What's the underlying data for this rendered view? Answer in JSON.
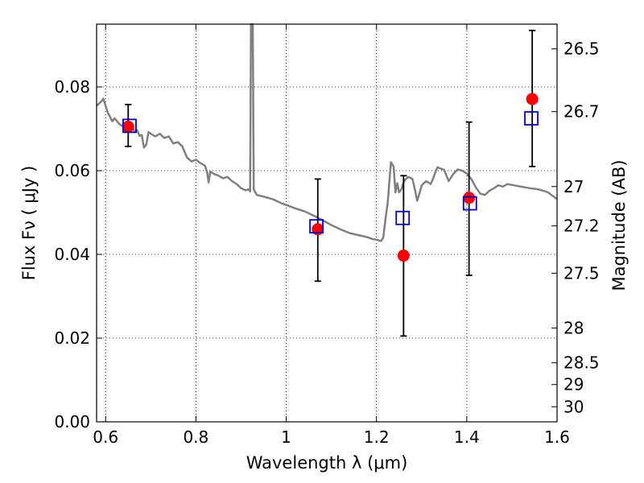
{
  "chart_data": {
    "type": "scatter",
    "title": "",
    "xlabel": "Wavelength  λ (μm)",
    "ylabel": "Flux  Fν  ( μJy )",
    "ylabel_right": "Magnitude (AB)",
    "xlim": [
      0.58,
      1.6
    ],
    "ylim": [
      0.0,
      0.095
    ],
    "grid": true,
    "grid_style": "dotted",
    "x_ticks": [
      0.6,
      0.8,
      1.0,
      1.2,
      1.4,
      1.6
    ],
    "x_tick_labels": [
      "0.6",
      "0.8",
      "1",
      "1.2",
      "1.4",
      "1.6"
    ],
    "y_ticks": [
      0.0,
      0.02,
      0.04,
      0.06,
      0.08
    ],
    "y_tick_labels": [
      "0.00",
      "0.02",
      "0.04",
      "0.06",
      "0.08"
    ],
    "right_ticks": [
      {
        "label": "26.5",
        "flux": 0.0891
      },
      {
        "label": "26.7",
        "flux": 0.0741
      },
      {
        "label": "27",
        "flux": 0.0562
      },
      {
        "label": "27.2",
        "flux": 0.0468
      },
      {
        "label": "27.5",
        "flux": 0.0355
      },
      {
        "label": "28",
        "flux": 0.0224
      },
      {
        "label": "28.5",
        "flux": 0.0141
      },
      {
        "label": "29",
        "flux": 0.0089
      },
      {
        "label": "30",
        "flux": 0.0036
      }
    ],
    "colors": {
      "model": "#808080",
      "observed": "#ff0000",
      "synthetic": "#0000cc",
      "errorbar": "#000000"
    },
    "series": [
      {
        "kind": "line",
        "points": [
          [
            0.58,
            0.0755
          ],
          [
            0.59,
            0.0765
          ],
          [
            0.595,
            0.0772
          ],
          [
            0.6,
            0.0755
          ],
          [
            0.605,
            0.0738
          ],
          [
            0.61,
            0.0728
          ],
          [
            0.615,
            0.0718
          ],
          [
            0.62,
            0.0725
          ],
          [
            0.63,
            0.0712
          ],
          [
            0.64,
            0.0705
          ],
          [
            0.65,
            0.0712
          ],
          [
            0.66,
            0.0702
          ],
          [
            0.665,
            0.0692
          ],
          [
            0.67,
            0.0697
          ],
          [
            0.675,
            0.0683
          ],
          [
            0.68,
            0.0685
          ],
          [
            0.685,
            0.0655
          ],
          [
            0.69,
            0.0662
          ],
          [
            0.695,
            0.0692
          ],
          [
            0.7,
            0.0688
          ],
          [
            0.71,
            0.0682
          ],
          [
            0.72,
            0.0688
          ],
          [
            0.73,
            0.0678
          ],
          [
            0.74,
            0.0682
          ],
          [
            0.75,
            0.0665
          ],
          [
            0.76,
            0.0668
          ],
          [
            0.77,
            0.0658
          ],
          [
            0.78,
            0.0632
          ],
          [
            0.79,
            0.0622
          ],
          [
            0.8,
            0.0626
          ],
          [
            0.81,
            0.0618
          ],
          [
            0.82,
            0.0612
          ],
          [
            0.825,
            0.0595
          ],
          [
            0.828,
            0.0572
          ],
          [
            0.832,
            0.0598
          ],
          [
            0.84,
            0.0592
          ],
          [
            0.85,
            0.0588
          ],
          [
            0.86,
            0.0582
          ],
          [
            0.87,
            0.0585
          ],
          [
            0.88,
            0.0575
          ],
          [
            0.89,
            0.0568
          ],
          [
            0.9,
            0.0558
          ],
          [
            0.91,
            0.0553
          ],
          [
            0.918,
            0.0556
          ],
          [
            0.92,
            0.055
          ],
          [
            0.922,
            0.095
          ],
          [
            0.926,
            0.095
          ],
          [
            0.928,
            0.0555
          ],
          [
            0.935,
            0.0542
          ],
          [
            0.95,
            0.0538
          ],
          [
            0.97,
            0.0532
          ],
          [
            0.99,
            0.0522
          ],
          [
            1.0,
            0.0518
          ],
          [
            1.02,
            0.051
          ],
          [
            1.04,
            0.0503
          ],
          [
            1.06,
            0.0493
          ],
          [
            1.08,
            0.0482
          ],
          [
            1.1,
            0.047
          ],
          [
            1.12,
            0.046
          ],
          [
            1.14,
            0.0451
          ],
          [
            1.16,
            0.0446
          ],
          [
            1.18,
            0.0441
          ],
          [
            1.19,
            0.0437
          ],
          [
            1.2,
            0.0435
          ],
          [
            1.21,
            0.0432
          ],
          [
            1.215,
            0.044
          ],
          [
            1.22,
            0.0485
          ],
          [
            1.225,
            0.0525
          ],
          [
            1.232,
            0.062
          ],
          [
            1.238,
            0.061
          ],
          [
            1.242,
            0.0548
          ],
          [
            1.246,
            0.057
          ],
          [
            1.25,
            0.0548
          ],
          [
            1.255,
            0.0555
          ],
          [
            1.26,
            0.0572
          ],
          [
            1.265,
            0.058
          ],
          [
            1.27,
            0.0585
          ],
          [
            1.275,
            0.0583
          ],
          [
            1.28,
            0.058
          ],
          [
            1.285,
            0.0555
          ],
          [
            1.29,
            0.0528
          ],
          [
            1.295,
            0.0545
          ],
          [
            1.3,
            0.0565
          ],
          [
            1.31,
            0.0575
          ],
          [
            1.32,
            0.0568
          ],
          [
            1.325,
            0.058
          ],
          [
            1.33,
            0.0595
          ],
          [
            1.335,
            0.0608
          ],
          [
            1.34,
            0.0606
          ],
          [
            1.35,
            0.0602
          ],
          [
            1.355,
            0.0588
          ],
          [
            1.36,
            0.0575
          ],
          [
            1.37,
            0.0592
          ],
          [
            1.38,
            0.0603
          ],
          [
            1.39,
            0.06
          ],
          [
            1.4,
            0.0593
          ],
          [
            1.41,
            0.058
          ],
          [
            1.42,
            0.056
          ],
          [
            1.43,
            0.0545
          ],
          [
            1.44,
            0.0542
          ],
          [
            1.45,
            0.0552
          ],
          [
            1.46,
            0.0558
          ],
          [
            1.47,
            0.0565
          ],
          [
            1.48,
            0.0562
          ],
          [
            1.49,
            0.0568
          ],
          [
            1.5,
            0.0566
          ],
          [
            1.52,
            0.0562
          ],
          [
            1.54,
            0.0558
          ],
          [
            1.56,
            0.0555
          ],
          [
            1.57,
            0.0552
          ],
          [
            1.58,
            0.0548
          ],
          [
            1.59,
            0.054
          ],
          [
            1.6,
            0.0532
          ]
        ]
      },
      {
        "kind": "observed",
        "points": [
          {
            "x": 0.65,
            "y": 0.0705,
            "yerr_lo": 0.0658,
            "yerr_hi": 0.0758
          },
          {
            "x": 1.07,
            "y": 0.046,
            "yerr_lo": 0.0336,
            "yerr_hi": 0.058
          },
          {
            "x": 1.26,
            "y": 0.0397,
            "yerr_lo": 0.0205,
            "yerr_hi": 0.0588
          },
          {
            "x": 1.405,
            "y": 0.0535,
            "yerr_lo": 0.035,
            "yerr_hi": 0.0716
          },
          {
            "x": 1.545,
            "y": 0.0771,
            "yerr_lo": 0.061,
            "yerr_hi": 0.0935
          }
        ]
      },
      {
        "kind": "synthetic",
        "points": [
          {
            "x": 0.653,
            "y": 0.0707
          },
          {
            "x": 1.067,
            "y": 0.0467
          },
          {
            "x": 1.258,
            "y": 0.0487
          },
          {
            "x": 1.407,
            "y": 0.0522
          },
          {
            "x": 1.543,
            "y": 0.0725
          }
        ]
      }
    ]
  }
}
